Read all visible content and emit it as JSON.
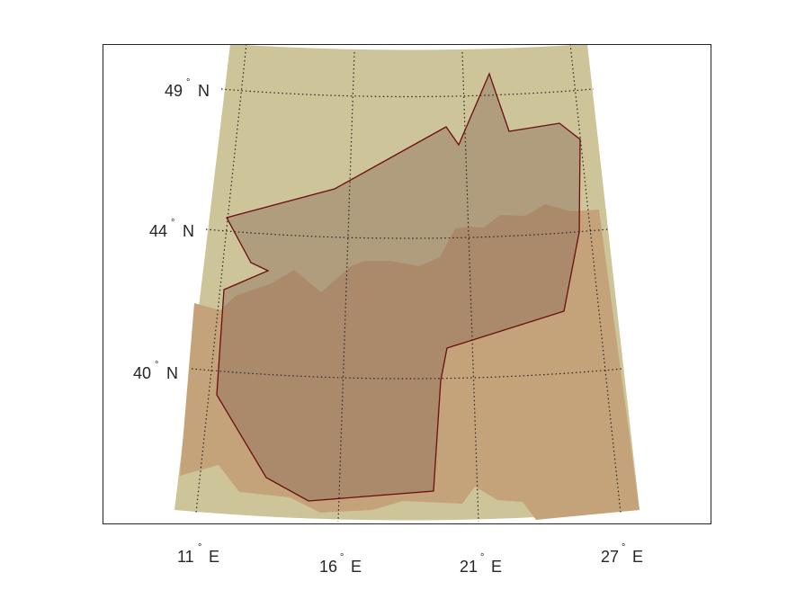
{
  "colors": {
    "background": "#ffffff",
    "axes_box": "#262626",
    "land_light": "#cdc599",
    "terrain_high": "#c5a37a",
    "region_fill": "#8c6d5a",
    "region_edge": "#6b0e0e",
    "graticule": "#262626"
  },
  "latitude_labels": [
    {
      "value": "49",
      "hemisphere": "N"
    },
    {
      "value": "44",
      "hemisphere": "N"
    },
    {
      "value": "40",
      "hemisphere": "N"
    }
  ],
  "longitude_labels": [
    {
      "value": "11",
      "hemisphere": "E"
    },
    {
      "value": "16",
      "hemisphere": "E"
    },
    {
      "value": "21",
      "hemisphere": "E"
    },
    {
      "value": "27",
      "hemisphere": "E"
    }
  ],
  "degree_symbol": "°"
}
